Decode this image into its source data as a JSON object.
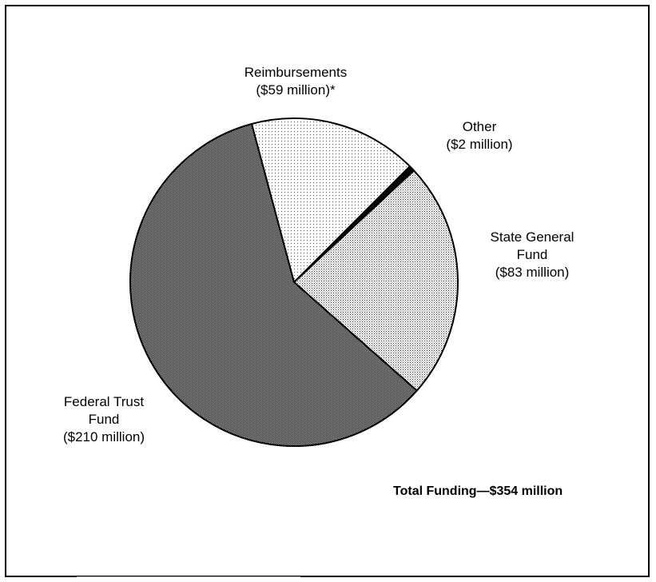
{
  "chart_data": {
    "type": "pie",
    "title": "",
    "slices": [
      {
        "name": "Reimbursements",
        "label_lines": [
          "Reimbursements",
          "($59 million)*"
        ],
        "value": 59,
        "pattern": "light-dots"
      },
      {
        "name": "Other",
        "label_lines": [
          "Other",
          "($2 million)"
        ],
        "value": 2,
        "pattern": "solid-black"
      },
      {
        "name": "State General Fund",
        "label_lines": [
          "State General",
          "Fund",
          "($83 million)"
        ],
        "value": 83,
        "pattern": "medium-dots"
      },
      {
        "name": "Federal Trust Fund",
        "label_lines": [
          "Federal Trust",
          "Fund",
          "($210 million)"
        ],
        "value": 210,
        "pattern": "dense-dots"
      }
    ],
    "total_label": "Total Funding—$354 million",
    "units": "million dollars",
    "colors": {
      "background": "#ffffff",
      "outline": "#000000"
    }
  }
}
